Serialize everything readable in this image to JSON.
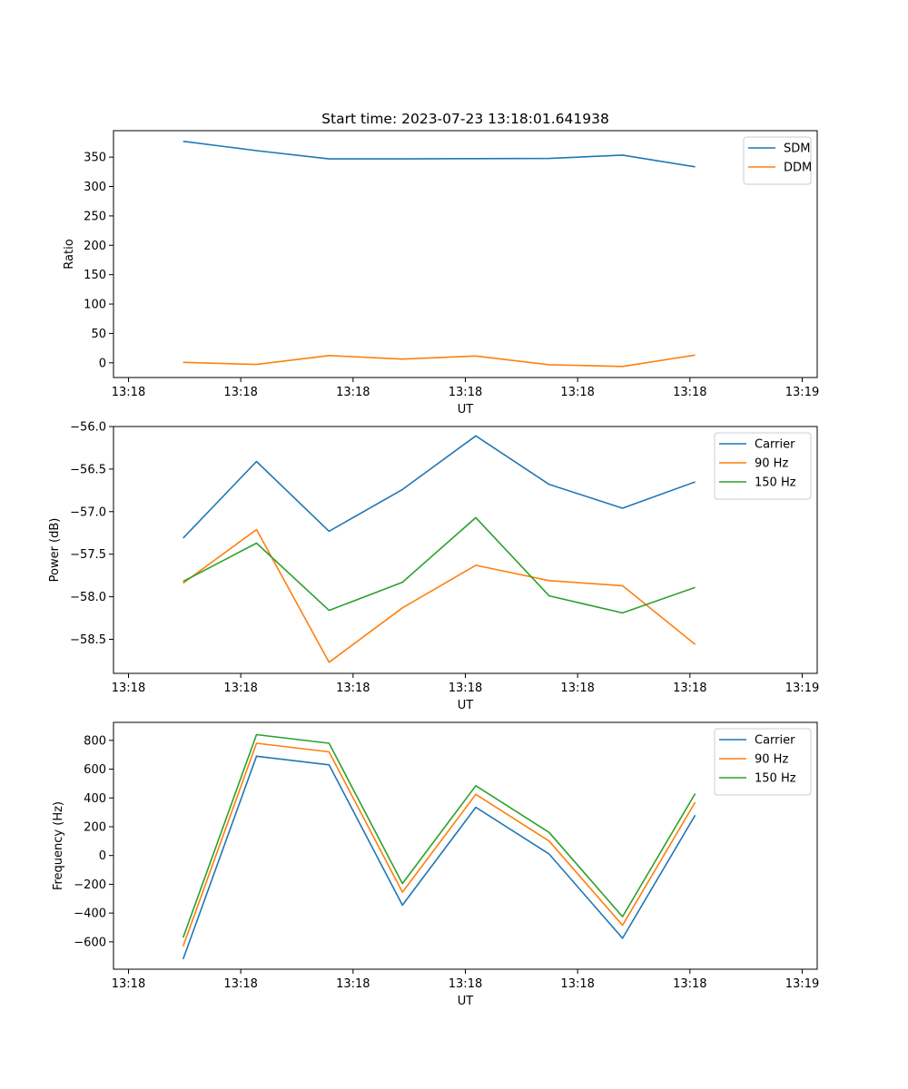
{
  "figure": {
    "title": "Start time: 2023-07-23 13:18:01.641938"
  },
  "charts": [
    {
      "type": "line",
      "title": "Start time: 2023-07-23 13:18:01.641938",
      "xlabel": "UT",
      "ylabel": "Ratio",
      "xlim": [
        -0.2,
        9.2
      ],
      "ylim": [
        -25,
        395
      ],
      "xticks": [
        0,
        1.5,
        3,
        4.5,
        6,
        7.5,
        9
      ],
      "xticklabels": [
        "13:18",
        "13:18",
        "13:18",
        "13:18",
        "13:18",
        "13:18",
        "13:19"
      ],
      "yticks": [
        0,
        50,
        100,
        150,
        200,
        250,
        300,
        350
      ],
      "ytick_labels": [
        "0",
        "50",
        "100",
        "150",
        "200",
        "250",
        "300",
        "350"
      ],
      "legend_position": "top-right",
      "x": [
        0.73,
        1.71,
        2.68,
        3.66,
        4.64,
        5.62,
        6.6,
        7.57
      ],
      "series": [
        {
          "name": "SDM",
          "color": "#1f77b4",
          "values": [
            377,
            361,
            347,
            347,
            347.5,
            347.8,
            353.5,
            333.5
          ]
        },
        {
          "name": "DDM",
          "color": "#ff7f0e",
          "values": [
            0.8,
            -2.8,
            12.4,
            6.3,
            11.6,
            -3.2,
            -6.2,
            13.2
          ]
        }
      ]
    },
    {
      "type": "line",
      "title": "",
      "xlabel": "UT",
      "ylabel": "Power (dB)",
      "xlim": [
        -0.2,
        9.2
      ],
      "ylim": [
        -58.9,
        -56.0
      ],
      "xticks": [
        0,
        1.5,
        3,
        4.5,
        6,
        7.5,
        9
      ],
      "xticklabels": [
        "13:18",
        "13:18",
        "13:18",
        "13:18",
        "13:18",
        "13:18",
        "13:19"
      ],
      "yticks": [
        -58.5,
        -58.0,
        -57.5,
        -57.0,
        -56.5,
        -56.0
      ],
      "ytick_labels": [
        "−58.5",
        "−58.0",
        "−57.5",
        "−57.0",
        "−56.5",
        "−56.0"
      ],
      "legend_position": "top-right",
      "x": [
        0.73,
        1.71,
        2.68,
        3.66,
        4.64,
        5.62,
        6.6,
        7.57
      ],
      "series": [
        {
          "name": "Carrier",
          "color": "#1f77b4",
          "values": [
            -57.31,
            -56.41,
            -57.23,
            -56.74,
            -56.11,
            -56.68,
            -56.96,
            -56.65
          ]
        },
        {
          "name": "90 Hz",
          "color": "#ff7f0e",
          "values": [
            -57.84,
            -57.21,
            -58.77,
            -58.13,
            -57.63,
            -57.81,
            -57.87,
            -58.56
          ]
        },
        {
          "name": "150 Hz",
          "color": "#2ca02c",
          "values": [
            -57.82,
            -57.37,
            -58.16,
            -57.83,
            -57.07,
            -57.99,
            -58.19,
            -57.89
          ]
        }
      ]
    },
    {
      "type": "line",
      "title": "",
      "xlabel": "UT",
      "ylabel": "Frequency (Hz)",
      "xlim": [
        -0.2,
        9.2
      ],
      "ylim": [
        -790,
        925
      ],
      "xticks": [
        0,
        1.5,
        3,
        4.5,
        6,
        7.5,
        9
      ],
      "xticklabels": [
        "13:18",
        "13:18",
        "13:18",
        "13:18",
        "13:18",
        "13:18",
        "13:19"
      ],
      "yticks": [
        -600,
        -400,
        -200,
        0,
        200,
        400,
        600,
        800
      ],
      "ytick_labels": [
        "−600",
        "−400",
        "−200",
        "0",
        "200",
        "400",
        "600",
        "800"
      ],
      "legend_position": "top-right",
      "x": [
        0.73,
        1.71,
        2.68,
        3.66,
        4.64,
        5.62,
        6.6,
        7.57
      ],
      "series": [
        {
          "name": "Carrier",
          "color": "#1f77b4",
          "values": [
            -720,
            690,
            630,
            -345,
            335,
            10,
            -575,
            280
          ]
        },
        {
          "name": "90 Hz",
          "color": "#ff7f0e",
          "values": [
            -630,
            780,
            720,
            -255,
            425,
            100,
            -485,
            370
          ]
        },
        {
          "name": "150 Hz",
          "color": "#2ca02c",
          "values": [
            -570,
            840,
            780,
            -195,
            485,
            160,
            -425,
            430
          ]
        }
      ]
    }
  ]
}
